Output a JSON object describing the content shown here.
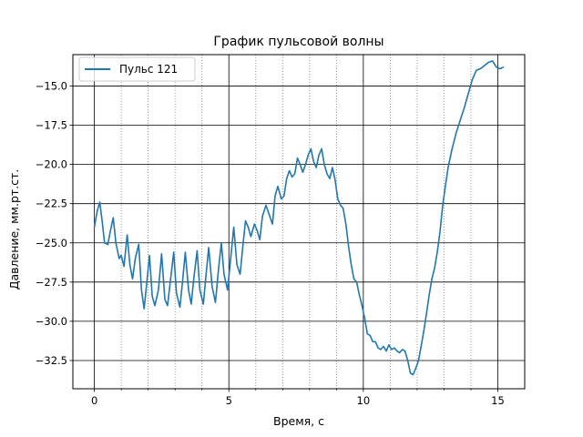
{
  "chart_data": {
    "type": "line",
    "title": "График пульсовой волны",
    "xlabel": "Время, с",
    "ylabel": "Давление, мм.рт.ст.",
    "xlim": [
      -0.8,
      16.0
    ],
    "ylim": [
      -34.3,
      -13.0
    ],
    "xticks": [
      0,
      5,
      10,
      15
    ],
    "xtick_labels": [
      "0",
      "5",
      "10",
      "15"
    ],
    "yticks": [
      -15.0,
      -17.5,
      -20.0,
      -22.5,
      -25.0,
      -27.5,
      -30.0,
      -32.5
    ],
    "ytick_labels": [
      "−15.0",
      "−17.5",
      "−20.0",
      "−22.5",
      "−25.0",
      "−27.5",
      "−30.0",
      "−32.5"
    ],
    "minor_xticks": [
      1,
      2,
      3,
      4,
      6,
      7,
      8,
      9,
      11,
      12,
      13,
      14
    ],
    "grid": {
      "major_x": true,
      "major_y": true,
      "minor_x": true,
      "major_color": "#000000",
      "minor_color": "#7f7f7f",
      "minor_style": "dotted"
    },
    "legend_position": "upper-left",
    "series": [
      {
        "name": "Пульс 121",
        "color": "#1f77b4",
        "x": [
          0.0,
          0.1,
          0.2,
          0.28,
          0.38,
          0.5,
          0.6,
          0.7,
          0.8,
          0.92,
          1.0,
          1.1,
          1.22,
          1.32,
          1.42,
          1.52,
          1.65,
          1.75,
          1.85,
          1.95,
          2.05,
          2.15,
          2.25,
          2.38,
          2.5,
          2.62,
          2.72,
          2.82,
          2.95,
          3.05,
          3.18,
          3.28,
          3.38,
          3.5,
          3.6,
          3.7,
          3.82,
          3.92,
          4.05,
          4.15,
          4.25,
          4.38,
          4.5,
          4.62,
          4.72,
          4.82,
          4.95,
          5.05,
          5.18,
          5.3,
          5.42,
          5.52,
          5.62,
          5.72,
          5.82,
          5.95,
          6.05,
          6.15,
          6.25,
          6.38,
          6.5,
          6.62,
          6.72,
          6.82,
          6.95,
          7.05,
          7.15,
          7.25,
          7.35,
          7.45,
          7.55,
          7.65,
          7.75,
          7.85,
          7.95,
          8.05,
          8.15,
          8.25,
          8.35,
          8.45,
          8.55,
          8.65,
          8.75,
          8.85,
          8.95,
          9.05,
          9.15,
          9.25,
          9.35,
          9.45,
          9.55,
          9.65,
          9.75,
          9.85,
          9.95,
          10.05,
          10.15,
          10.25,
          10.35,
          10.45,
          10.55,
          10.65,
          10.75,
          10.85,
          10.95,
          11.05,
          11.15,
          11.25,
          11.35,
          11.45,
          11.55,
          11.65,
          11.75,
          11.85,
          11.95,
          12.05,
          12.15,
          12.25,
          12.35,
          12.45,
          12.55,
          12.65,
          12.75,
          12.85,
          12.95,
          13.05,
          13.15,
          13.3,
          13.45,
          13.6,
          13.75,
          13.9,
          14.05,
          14.2,
          14.35,
          14.5,
          14.65,
          14.8,
          14.95,
          15.08,
          15.2
        ],
        "y": [
          -24.0,
          -23.0,
          -22.4,
          -23.5,
          -25.0,
          -25.1,
          -24.2,
          -23.4,
          -25.0,
          -26.0,
          -25.8,
          -26.5,
          -24.5,
          -26.4,
          -27.3,
          -26.0,
          -25.1,
          -28.0,
          -29.2,
          -27.5,
          -25.8,
          -28.4,
          -29.0,
          -28.0,
          -25.7,
          -28.6,
          -29.0,
          -27.5,
          -25.6,
          -28.2,
          -29.1,
          -27.4,
          -25.6,
          -28.0,
          -28.9,
          -27.2,
          -25.5,
          -28.0,
          -28.9,
          -27.1,
          -25.3,
          -27.8,
          -28.8,
          -26.6,
          -25.0,
          -27.0,
          -28.0,
          -26.3,
          -24.0,
          -26.4,
          -27.0,
          -25.2,
          -23.6,
          -24.0,
          -24.6,
          -23.8,
          -24.2,
          -24.8,
          -23.3,
          -22.6,
          -23.2,
          -23.8,
          -22.0,
          -21.4,
          -22.2,
          -22.0,
          -20.9,
          -20.4,
          -20.8,
          -20.6,
          -19.6,
          -20.0,
          -20.5,
          -20.0,
          -19.4,
          -19.0,
          -19.8,
          -20.2,
          -19.4,
          -19.0,
          -20.0,
          -20.6,
          -20.9,
          -20.2,
          -21.0,
          -22.2,
          -22.6,
          -22.8,
          -23.8,
          -25.2,
          -26.4,
          -27.3,
          -27.5,
          -28.3,
          -29.0,
          -29.8,
          -30.8,
          -30.9,
          -31.3,
          -31.3,
          -31.7,
          -31.8,
          -31.6,
          -31.9,
          -31.5,
          -31.8,
          -31.7,
          -31.9,
          -32.0,
          -31.8,
          -31.9,
          -32.5,
          -33.3,
          -33.4,
          -33.0,
          -32.5,
          -31.6,
          -30.6,
          -29.5,
          -28.3,
          -27.3,
          -26.6,
          -25.6,
          -24.3,
          -22.6,
          -21.4,
          -20.2,
          -19.0,
          -18.0,
          -17.2,
          -16.4,
          -15.5,
          -14.6,
          -14.0,
          -13.9,
          -13.7,
          -13.5,
          -13.4,
          -13.8,
          -13.9,
          -13.8
        ]
      }
    ]
  }
}
